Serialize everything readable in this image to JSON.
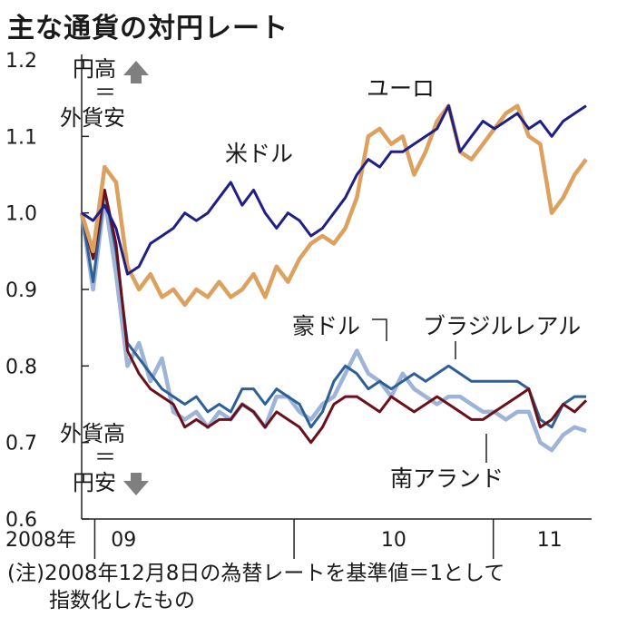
{
  "title": "主な通貨の対円レート",
  "note": {
    "line1": "(注)2008年12月8日の為替レートを基準値＝1として",
    "line2": "指数化したもの"
  },
  "annotations": {
    "yen_strong": [
      "円高",
      "＝",
      "外貨安"
    ],
    "yen_weak": [
      "外貨高",
      "＝",
      "円安"
    ]
  },
  "colors": {
    "usd": "#1f1f86",
    "eur": "#dca15f",
    "aud": "#9eb3d7",
    "brl": "#2e5f97",
    "zar": "#6b0f1a",
    "arrow": "#7f7f7f"
  },
  "chart_data": {
    "type": "line",
    "title": "主な通貨の対円レート",
    "ylim": [
      0.6,
      1.2
    ],
    "y_ticks": [
      "0.6",
      "0.7",
      "0.8",
      "0.9",
      "1.0",
      "1.1",
      "1.2"
    ],
    "x_ticks": [
      {
        "label": "2008年",
        "x": "2008-12"
      },
      {
        "label": "09",
        "x": "2009"
      },
      {
        "label": "10",
        "x": "2010"
      },
      {
        "label": "11",
        "x": "2011"
      }
    ],
    "x_range": [
      "2008-12-08",
      "2011-06-30"
    ],
    "grid": false,
    "series": [
      {
        "name": "豪ドル",
        "color_key": "aud",
        "x": [
          "2008-12-08",
          "2008-12-29",
          "2009-01-19",
          "2009-02-09",
          "2009-03-02",
          "2009-03-23",
          "2009-04-13",
          "2009-05-04",
          "2009-05-25",
          "2009-06-15",
          "2009-07-06",
          "2009-07-27",
          "2009-08-17",
          "2009-09-07",
          "2009-09-28",
          "2009-10-19",
          "2009-11-09",
          "2009-11-30",
          "2009-12-21",
          "2010-01-11",
          "2010-02-01",
          "2010-02-22",
          "2010-03-15",
          "2010-04-05",
          "2010-04-26",
          "2010-05-17",
          "2010-06-07",
          "2010-06-28",
          "2010-07-19",
          "2010-08-09",
          "2010-08-30",
          "2010-09-20",
          "2010-10-11",
          "2010-11-01",
          "2010-11-22",
          "2010-12-13",
          "2011-01-03",
          "2011-01-24",
          "2011-02-14",
          "2011-03-07",
          "2011-03-28",
          "2011-04-18",
          "2011-05-09",
          "2011-05-30",
          "2011-06-20"
        ],
        "values": [
          1.0,
          0.9,
          1.02,
          0.92,
          0.8,
          0.83,
          0.78,
          0.81,
          0.74,
          0.73,
          0.74,
          0.72,
          0.74,
          0.73,
          0.75,
          0.74,
          0.72,
          0.76,
          0.76,
          0.74,
          0.73,
          0.75,
          0.76,
          0.79,
          0.82,
          0.79,
          0.78,
          0.76,
          0.79,
          0.77,
          0.76,
          0.75,
          0.76,
          0.76,
          0.75,
          0.74,
          0.74,
          0.73,
          0.74,
          0.74,
          0.7,
          0.69,
          0.71,
          0.72,
          0.715
        ]
      },
      {
        "name": "ブラジルレアル",
        "color_key": "brl",
        "x": [
          "2008-12-08",
          "2008-12-29",
          "2009-01-19",
          "2009-02-09",
          "2009-03-02",
          "2009-03-23",
          "2009-04-13",
          "2009-05-04",
          "2009-05-25",
          "2009-06-15",
          "2009-07-06",
          "2009-07-27",
          "2009-08-17",
          "2009-09-07",
          "2009-09-28",
          "2009-10-19",
          "2009-11-09",
          "2009-11-30",
          "2009-12-21",
          "2010-01-11",
          "2010-02-01",
          "2010-02-22",
          "2010-03-15",
          "2010-04-05",
          "2010-04-26",
          "2010-05-17",
          "2010-06-07",
          "2010-06-28",
          "2010-07-19",
          "2010-08-09",
          "2010-08-30",
          "2010-09-20",
          "2010-10-11",
          "2010-11-01",
          "2010-11-22",
          "2010-12-13",
          "2011-01-03",
          "2011-01-24",
          "2011-02-14",
          "2011-03-07",
          "2011-03-28",
          "2011-04-18",
          "2011-05-09",
          "2011-05-30",
          "2011-06-20"
        ],
        "values": [
          1.0,
          0.91,
          1.03,
          0.95,
          0.83,
          0.81,
          0.79,
          0.77,
          0.76,
          0.75,
          0.76,
          0.74,
          0.75,
          0.74,
          0.77,
          0.77,
          0.75,
          0.77,
          0.76,
          0.75,
          0.72,
          0.74,
          0.78,
          0.8,
          0.79,
          0.77,
          0.78,
          0.77,
          0.78,
          0.79,
          0.78,
          0.79,
          0.8,
          0.79,
          0.78,
          0.78,
          0.78,
          0.78,
          0.78,
          0.77,
          0.73,
          0.72,
          0.75,
          0.76,
          0.76
        ]
      },
      {
        "name": "南アランド",
        "color_key": "zar",
        "x": [
          "2008-12-08",
          "2008-12-29",
          "2009-01-19",
          "2009-02-09",
          "2009-03-02",
          "2009-03-23",
          "2009-04-13",
          "2009-05-04",
          "2009-05-25",
          "2009-06-15",
          "2009-07-06",
          "2009-07-27",
          "2009-08-17",
          "2009-09-07",
          "2009-09-28",
          "2009-10-19",
          "2009-11-09",
          "2009-11-30",
          "2009-12-21",
          "2010-01-11",
          "2010-02-01",
          "2010-02-22",
          "2010-03-15",
          "2010-04-05",
          "2010-04-26",
          "2010-05-17",
          "2010-06-07",
          "2010-06-28",
          "2010-07-19",
          "2010-08-09",
          "2010-08-30",
          "2010-09-20",
          "2010-10-11",
          "2010-11-01",
          "2010-11-22",
          "2010-12-13",
          "2011-01-03",
          "2011-01-24",
          "2011-02-14",
          "2011-03-07",
          "2011-03-28",
          "2011-04-18",
          "2011-05-09",
          "2011-05-30",
          "2011-06-20"
        ],
        "values": [
          1.0,
          0.94,
          1.03,
          0.96,
          0.82,
          0.79,
          0.77,
          0.76,
          0.75,
          0.72,
          0.73,
          0.72,
          0.73,
          0.73,
          0.75,
          0.74,
          0.72,
          0.74,
          0.73,
          0.72,
          0.7,
          0.72,
          0.75,
          0.76,
          0.76,
          0.75,
          0.74,
          0.76,
          0.75,
          0.74,
          0.75,
          0.76,
          0.75,
          0.74,
          0.73,
          0.73,
          0.74,
          0.75,
          0.76,
          0.77,
          0.72,
          0.73,
          0.75,
          0.74,
          0.755
        ]
      },
      {
        "name": "ユーロ",
        "color_key": "eur",
        "x": [
          "2008-12-08",
          "2008-12-29",
          "2009-01-19",
          "2009-02-09",
          "2009-03-02",
          "2009-03-23",
          "2009-04-13",
          "2009-05-04",
          "2009-05-25",
          "2009-06-15",
          "2009-07-06",
          "2009-07-27",
          "2009-08-17",
          "2009-09-07",
          "2009-09-28",
          "2009-10-19",
          "2009-11-09",
          "2009-11-30",
          "2009-12-21",
          "2010-01-11",
          "2010-02-01",
          "2010-02-22",
          "2010-03-15",
          "2010-04-05",
          "2010-04-26",
          "2010-05-17",
          "2010-06-07",
          "2010-06-28",
          "2010-07-19",
          "2010-08-09",
          "2010-08-30",
          "2010-09-20",
          "2010-10-11",
          "2010-11-01",
          "2010-11-22",
          "2010-12-13",
          "2011-01-03",
          "2011-01-24",
          "2011-02-14",
          "2011-03-07",
          "2011-03-28",
          "2011-04-18",
          "2011-05-09",
          "2011-05-30",
          "2011-06-20"
        ],
        "values": [
          1.0,
          0.95,
          1.06,
          1.04,
          0.93,
          0.9,
          0.92,
          0.89,
          0.9,
          0.88,
          0.9,
          0.89,
          0.91,
          0.89,
          0.9,
          0.92,
          0.89,
          0.93,
          0.91,
          0.94,
          0.96,
          0.97,
          0.96,
          0.98,
          1.02,
          1.1,
          1.11,
          1.09,
          1.1,
          1.05,
          1.08,
          1.12,
          1.14,
          1.08,
          1.07,
          1.09,
          1.11,
          1.13,
          1.14,
          1.1,
          1.09,
          1.0,
          1.02,
          1.05,
          1.07
        ]
      },
      {
        "name": "米ドル",
        "color_key": "usd",
        "x": [
          "2008-12-08",
          "2008-12-29",
          "2009-01-19",
          "2009-02-09",
          "2009-03-02",
          "2009-03-23",
          "2009-04-13",
          "2009-05-04",
          "2009-05-25",
          "2009-06-15",
          "2009-07-06",
          "2009-07-27",
          "2009-08-17",
          "2009-09-07",
          "2009-09-28",
          "2009-10-19",
          "2009-11-09",
          "2009-11-30",
          "2009-12-21",
          "2010-01-11",
          "2010-02-01",
          "2010-02-22",
          "2010-03-15",
          "2010-04-05",
          "2010-04-26",
          "2010-05-17",
          "2010-06-07",
          "2010-06-28",
          "2010-07-19",
          "2010-08-09",
          "2010-08-30",
          "2010-09-20",
          "2010-10-11",
          "2010-11-01",
          "2010-11-22",
          "2010-12-13",
          "2011-01-03",
          "2011-01-24",
          "2011-02-14",
          "2011-03-07",
          "2011-03-28",
          "2011-04-18",
          "2011-05-09",
          "2011-05-30",
          "2011-06-20"
        ],
        "values": [
          1.0,
          0.99,
          1.01,
          0.98,
          0.92,
          0.93,
          0.96,
          0.97,
          0.98,
          1.0,
          0.99,
          1.0,
          1.02,
          1.04,
          1.01,
          1.03,
          1.0,
          0.98,
          1.0,
          0.99,
          0.97,
          0.98,
          1.0,
          1.02,
          1.05,
          1.07,
          1.06,
          1.08,
          1.08,
          1.09,
          1.1,
          1.11,
          1.14,
          1.08,
          1.1,
          1.12,
          1.11,
          1.12,
          1.13,
          1.11,
          1.12,
          1.1,
          1.12,
          1.13,
          1.14
        ]
      }
    ]
  }
}
